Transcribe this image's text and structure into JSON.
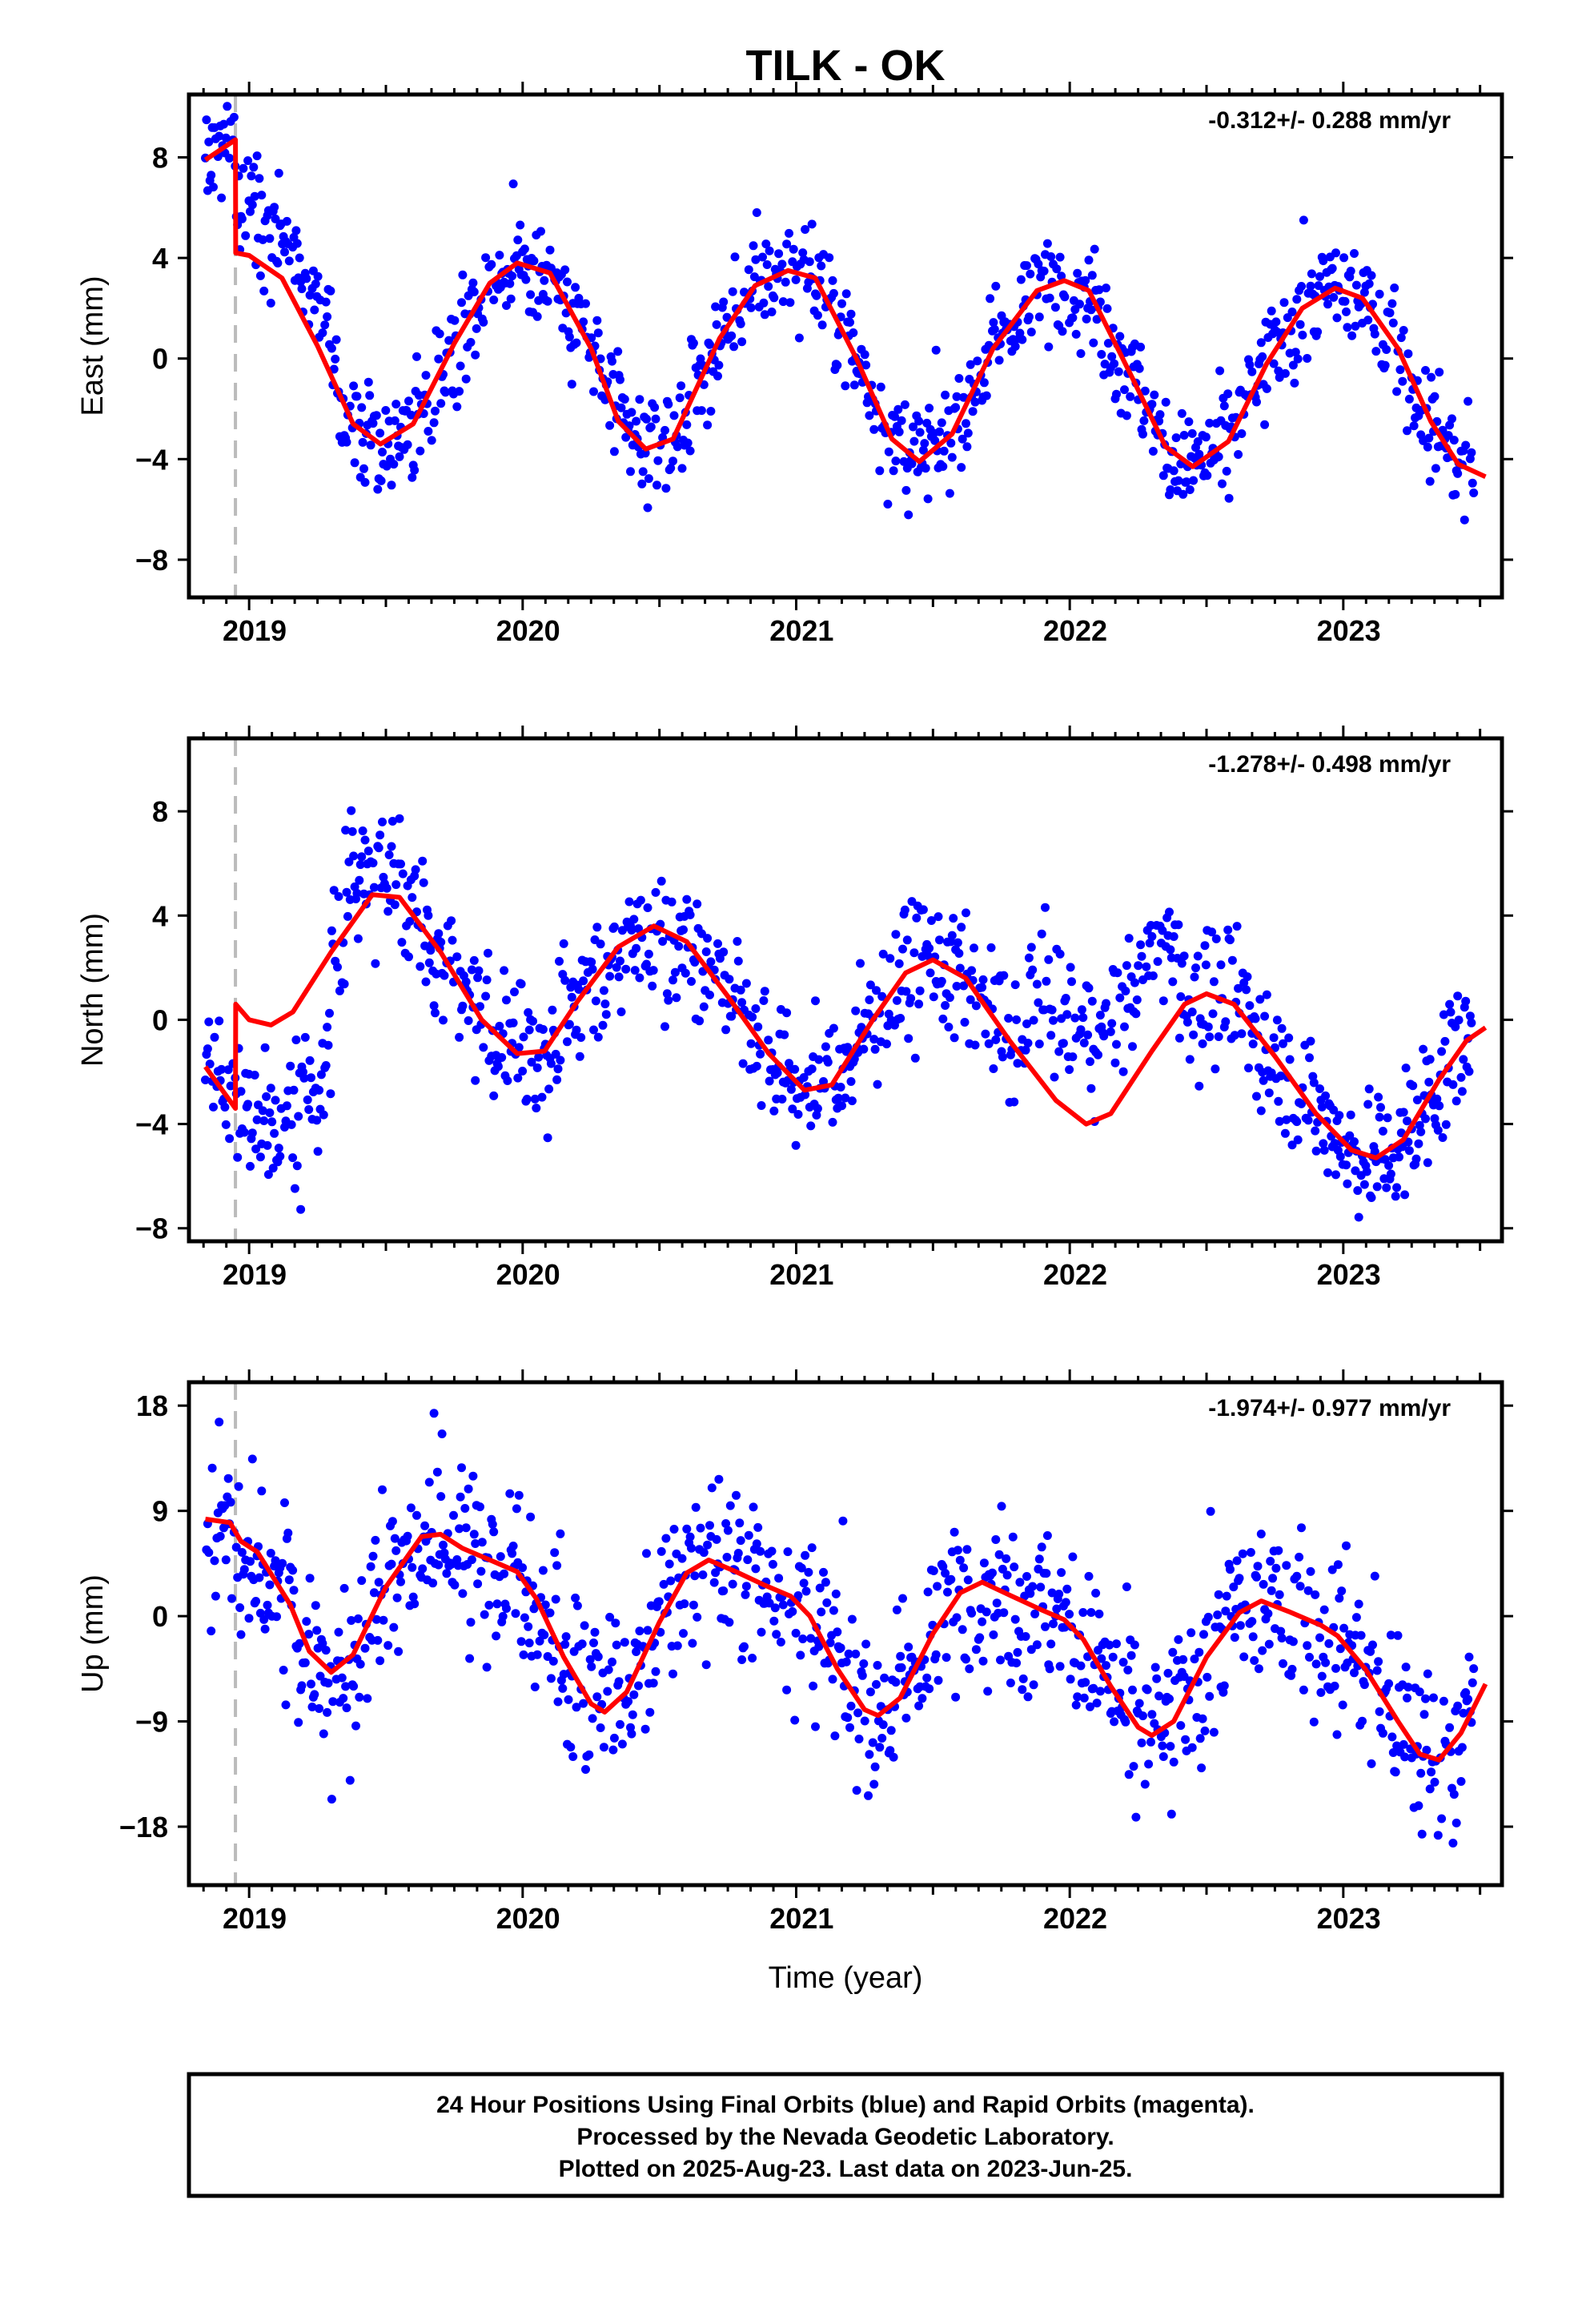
{
  "title": "TILK - OK",
  "xlabel": "Time (year)",
  "footer": {
    "line1": "24 Hour Positions Using Final Orbits (blue) and Rapid Orbits (magenta).",
    "line2": "Processed by the Nevada Geodetic Laboratory.",
    "line3": "Plotted on 2025-Aug-23. Last data on 2023-Jun-25."
  },
  "colors": {
    "points": "#0000ff",
    "model": "#ff0000",
    "event": "#bbbbbb"
  },
  "chart_data": [
    {
      "type": "scatter",
      "ylabel": "East (mm)",
      "rate_text": "-0.312+/- 0.288 mm/yr",
      "xlim": [
        2018.78,
        2023.58
      ],
      "ylim": [
        -9.5,
        10.5
      ],
      "yticks": [
        -8,
        -4,
        0,
        4,
        8
      ],
      "xticks": [
        2019,
        2020,
        2021,
        2022,
        2023
      ],
      "event_line": 2018.95,
      "series": [
        {
          "kind": "points",
          "model": "east",
          "scatter": 1.1
        },
        {
          "kind": "model",
          "model": "east"
        }
      ]
    },
    {
      "type": "scatter",
      "ylabel": "North (mm)",
      "rate_text": "-1.278+/- 0.498 mm/yr",
      "xlim": [
        2018.78,
        2023.58
      ],
      "ylim": [
        -8.5,
        10.8
      ],
      "yticks": [
        -8,
        -4,
        0,
        4,
        8
      ],
      "xticks": [
        2019,
        2020,
        2021,
        2022,
        2023
      ],
      "event_line": 2018.95,
      "series": [
        {
          "kind": "points",
          "model": "north",
          "scatter": 1.3
        },
        {
          "kind": "model",
          "model": "north"
        }
      ]
    },
    {
      "type": "scatter",
      "ylabel": "Up (mm)",
      "rate_text": "-1.974+/- 0.977 mm/yr",
      "xlim": [
        2018.78,
        2023.58
      ],
      "ylim": [
        -23,
        20
      ],
      "yticks": [
        -18,
        -9,
        0,
        9,
        18
      ],
      "xticks": [
        2019,
        2020,
        2021,
        2022,
        2023
      ],
      "event_line": 2018.95,
      "series": [
        {
          "kind": "points",
          "model": "up",
          "scatter": 3.8
        },
        {
          "kind": "model",
          "model": "up"
        }
      ]
    }
  ]
}
